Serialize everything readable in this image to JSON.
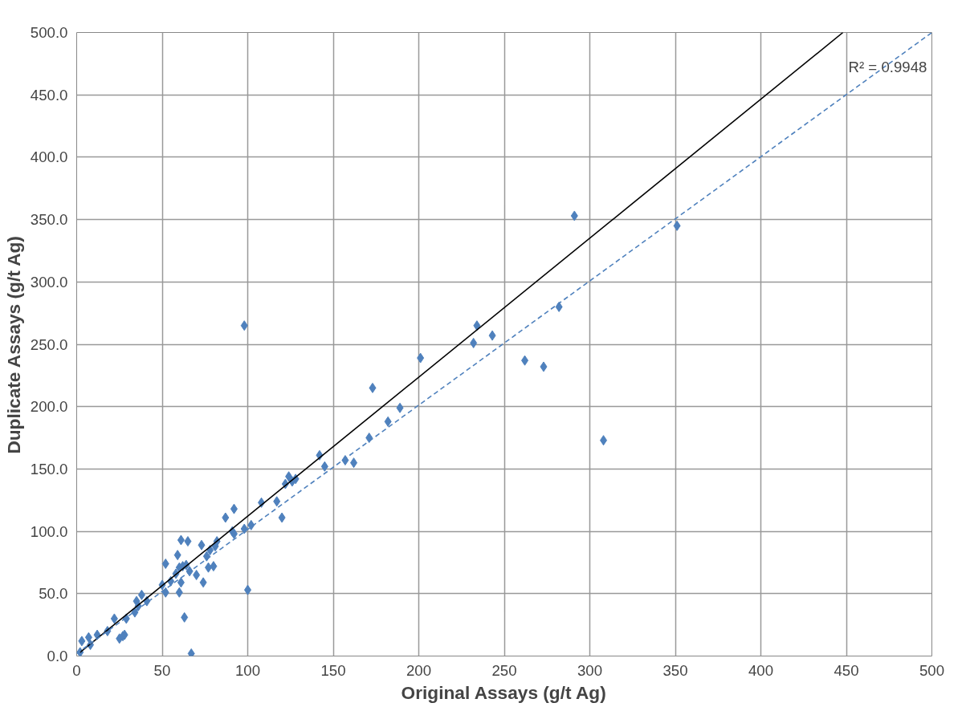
{
  "chart_data": {
    "type": "scatter",
    "xlabel": "Original Assays (g/t Ag)",
    "ylabel": "Duplicate Assays (g/t Ag)",
    "xlim": [
      0,
      500
    ],
    "ylim": [
      0,
      500
    ],
    "xticks": [
      0,
      50,
      100,
      150,
      200,
      250,
      300,
      350,
      400,
      450,
      500
    ],
    "yticks": [
      {
        "value": 0,
        "label": "0.0"
      },
      {
        "value": 50,
        "label": "50.0"
      },
      {
        "value": 100,
        "label": "100.0"
      },
      {
        "value": 150,
        "label": "150.0"
      },
      {
        "value": 200,
        "label": "200.0"
      },
      {
        "value": 250,
        "label": "250.0"
      },
      {
        "value": 300,
        "label": "300.0"
      },
      {
        "value": 350,
        "label": "350.0"
      },
      {
        "value": 400,
        "label": "400.0"
      },
      {
        "value": 450,
        "label": "450.0"
      },
      {
        "value": 500,
        "label": "500.0"
      }
    ],
    "grid": true,
    "annotations": [
      "R² = 0.9948"
    ],
    "series": [
      {
        "marker": "diamond",
        "color": "#4f81bd",
        "x": [
          2,
          3,
          7,
          8,
          12,
          18,
          22,
          25,
          27,
          28,
          29,
          34,
          35,
          36,
          38,
          41,
          50,
          52,
          52,
          55,
          58,
          59,
          60,
          60,
          61,
          61,
          62,
          63,
          64,
          65,
          66,
          67,
          70,
          73,
          74,
          76,
          77,
          78,
          80,
          81,
          82,
          87,
          91,
          92,
          92,
          98,
          98,
          100,
          102,
          108,
          117,
          120,
          122,
          124,
          126,
          128,
          142,
          145,
          157,
          162,
          171,
          173,
          182,
          189,
          201,
          232,
          234,
          243,
          262,
          273,
          282,
          291,
          308,
          351
        ],
        "values": [
          3,
          12,
          15,
          9,
          17,
          20,
          30,
          14,
          16,
          17,
          30,
          35,
          44,
          40,
          49,
          44,
          57,
          74,
          51,
          60,
          66,
          81,
          51,
          71,
          59,
          93,
          72,
          31,
          73,
          92,
          68,
          2,
          65,
          89,
          59,
          80,
          71,
          85,
          72,
          88,
          92,
          111,
          100,
          118,
          98,
          265,
          102,
          53,
          105,
          123,
          124,
          111,
          138,
          144,
          140,
          142,
          161,
          152,
          157,
          155,
          175,
          215,
          188,
          199,
          239,
          251,
          265,
          257,
          237,
          232,
          280,
          353,
          173,
          345
        ]
      },
      {
        "type": "line",
        "marker": "none",
        "color": "#000000",
        "line_style": "solid",
        "x": [
          2,
          448
        ],
        "values": [
          3,
          500
        ]
      },
      {
        "type": "line",
        "marker": "none",
        "color": "#4f81bd",
        "line_style": "dashed",
        "x": [
          0,
          500
        ],
        "values": [
          2,
          500
        ]
      }
    ]
  }
}
